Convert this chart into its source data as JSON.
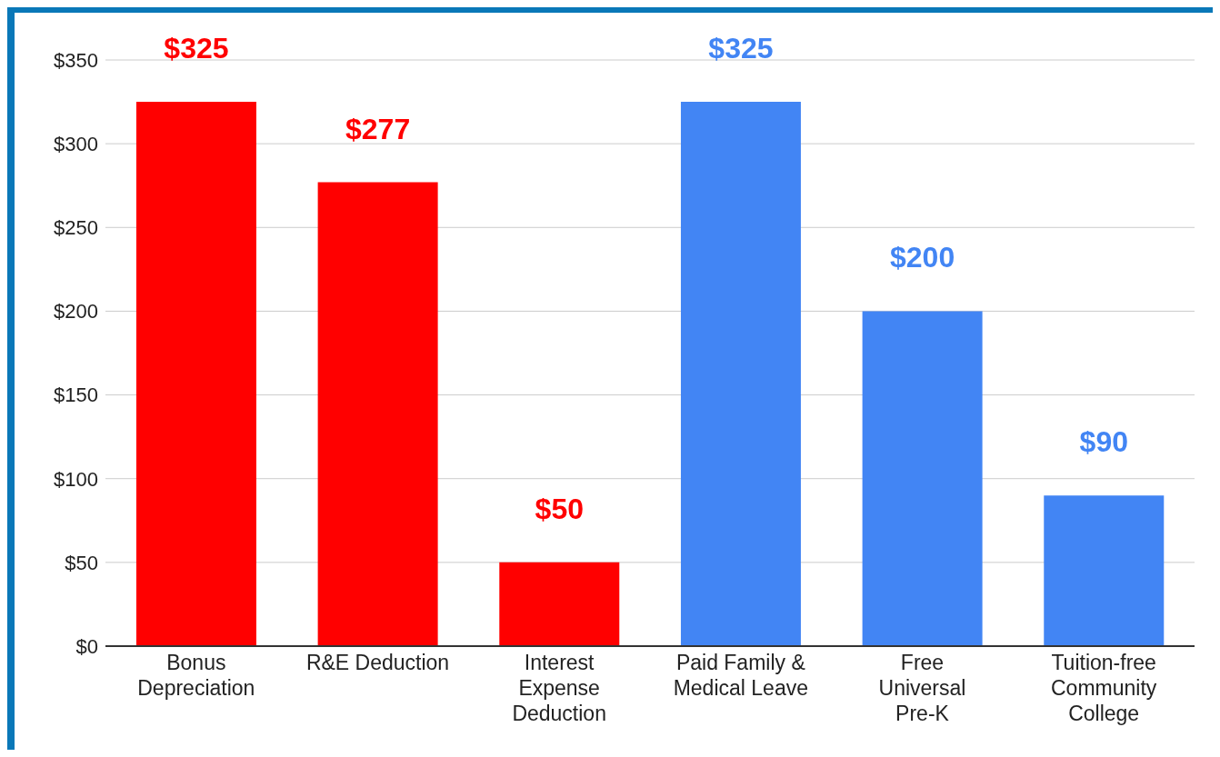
{
  "chart_data": {
    "type": "bar",
    "categories": [
      "Bonus Depreciation",
      "R&E Deduction",
      "Interest Expense Deduction",
      "Paid Family & Medical Leave",
      "Free Universal Pre-K",
      "Tuition-free Community College"
    ],
    "values": [
      325,
      277,
      50,
      325,
      200,
      90
    ],
    "colors": [
      "#ff0000",
      "#ff0000",
      "#ff0000",
      "#4285f4",
      "#4285f4",
      "#4285f4"
    ],
    "value_labels": [
      "$325",
      "$277",
      "$50",
      "$325",
      "$200",
      "$90"
    ],
    "ylim": [
      0,
      350
    ],
    "yticks": [
      {
        "value": 0,
        "label": "$0"
      },
      {
        "value": 50,
        "label": "$50"
      },
      {
        "value": 100,
        "label": "$100"
      },
      {
        "value": 150,
        "label": "$150"
      },
      {
        "value": 200,
        "label": "$200"
      },
      {
        "value": 250,
        "label": "$250"
      },
      {
        "value": 300,
        "label": "$300"
      },
      {
        "value": 350,
        "label": "$350"
      }
    ],
    "grid": "y"
  }
}
